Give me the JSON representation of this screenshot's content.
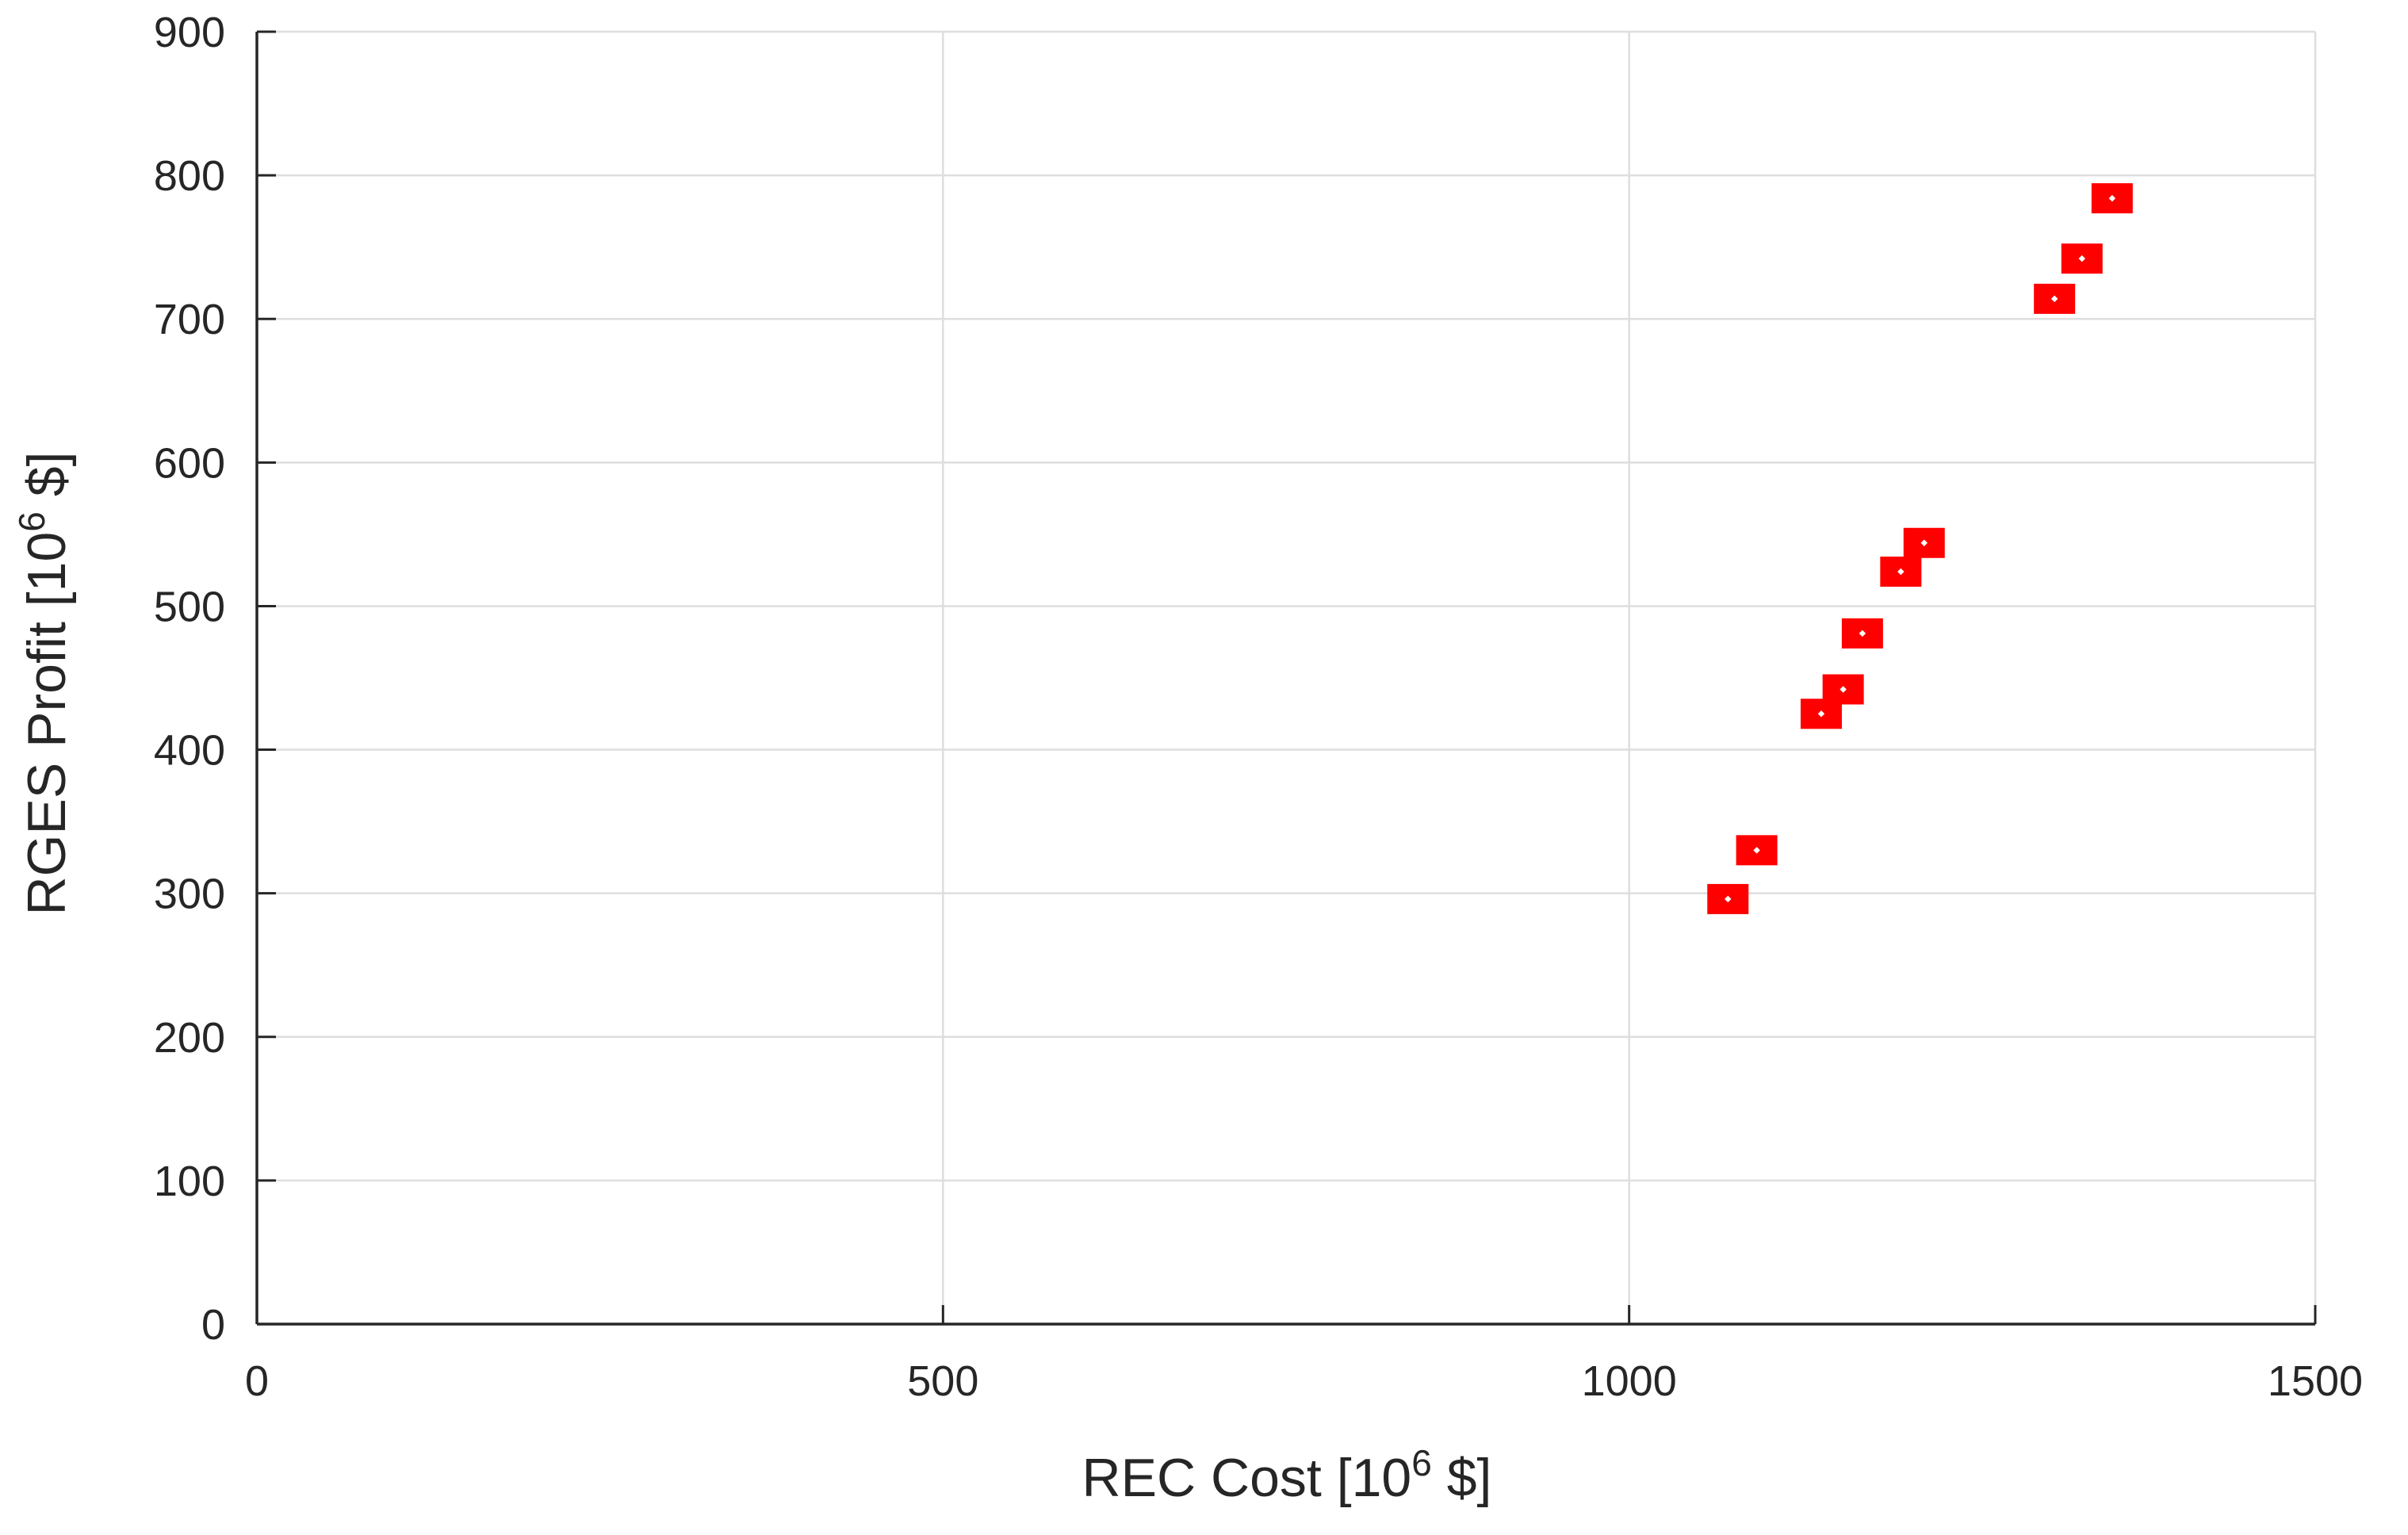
{
  "chart_data": {
    "type": "scatter",
    "title": "",
    "xlabel": {
      "prefix": "REC Cost [10",
      "superscript": "6",
      "suffix": " $]"
    },
    "ylabel": {
      "prefix": "RGES Profit [10",
      "superscript": "6",
      "suffix": " $]"
    },
    "xlim": [
      0,
      1500
    ],
    "ylim": [
      0,
      900
    ],
    "xticks": [
      0,
      500,
      1000,
      1500
    ],
    "yticks": [
      0,
      100,
      200,
      300,
      400,
      500,
      600,
      700,
      800,
      900
    ],
    "xtick_labels": [
      "0",
      "500",
      "1000",
      "1500"
    ],
    "ytick_labels": [
      "0",
      "100",
      "200",
      "300",
      "400",
      "500",
      "600",
      "700",
      "800",
      "900"
    ],
    "grid": true,
    "legend": "none",
    "marker": "square",
    "marker_color": "#ff0000",
    "series": [
      {
        "points": [
          {
            "x": 1072,
            "y": 296
          },
          {
            "x": 1093,
            "y": 330
          },
          {
            "x": 1140,
            "y": 425
          },
          {
            "x": 1156,
            "y": 442
          },
          {
            "x": 1170,
            "y": 481
          },
          {
            "x": 1198,
            "y": 524
          },
          {
            "x": 1215,
            "y": 544
          },
          {
            "x": 1310,
            "y": 714
          },
          {
            "x": 1330,
            "y": 742
          },
          {
            "x": 1352,
            "y": 784
          }
        ]
      }
    ]
  }
}
